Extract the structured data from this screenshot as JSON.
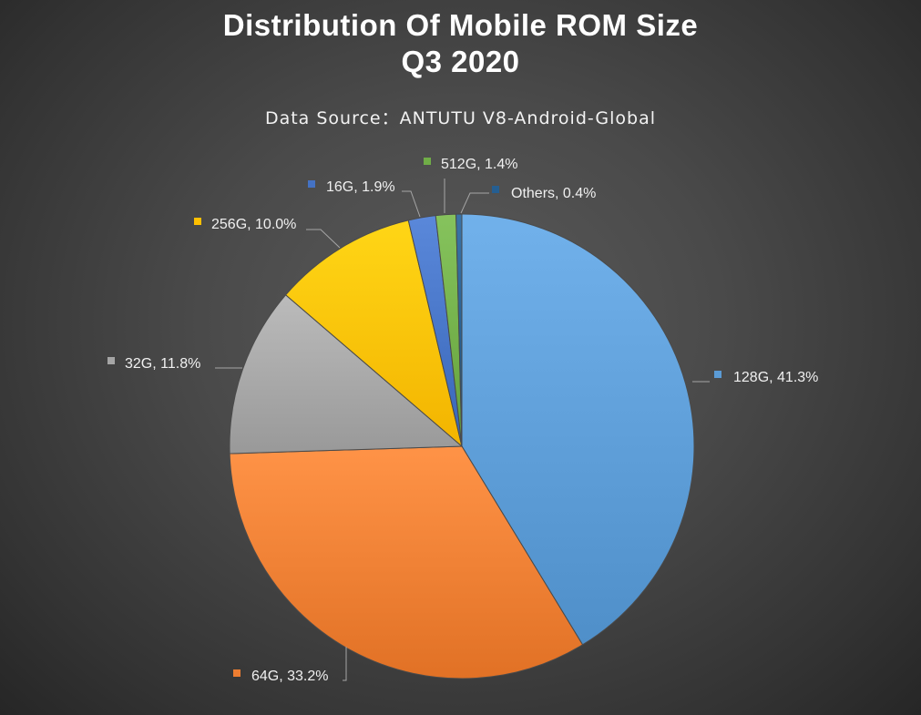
{
  "title_line1": "Distribution Of Mobile ROM Size",
  "title_line2": "Q3 2020",
  "subtitle": "Data Source：ANTUTU V8-Android-Global",
  "chart_data": {
    "type": "pie",
    "categories": [
      "128G",
      "64G",
      "32G",
      "256G",
      "16G",
      "512G",
      "Others"
    ],
    "values": [
      41.3,
      33.2,
      11.8,
      10.0,
      1.9,
      1.4,
      0.4
    ],
    "labels": [
      "128G, 41.3%",
      "64G, 33.2%",
      "32G, 11.8%",
      "256G, 10.0%",
      "16G, 1.9%",
      "512G, 1.4%",
      "Others, 0.4%"
    ],
    "colors": [
      "#5b9bd5",
      "#ed7d31",
      "#a5a5a5",
      "#ffc000",
      "#4472c4",
      "#70ad47",
      "#255e91"
    ],
    "legend": "none",
    "start_angle": "12 o'clock, clockwise"
  }
}
